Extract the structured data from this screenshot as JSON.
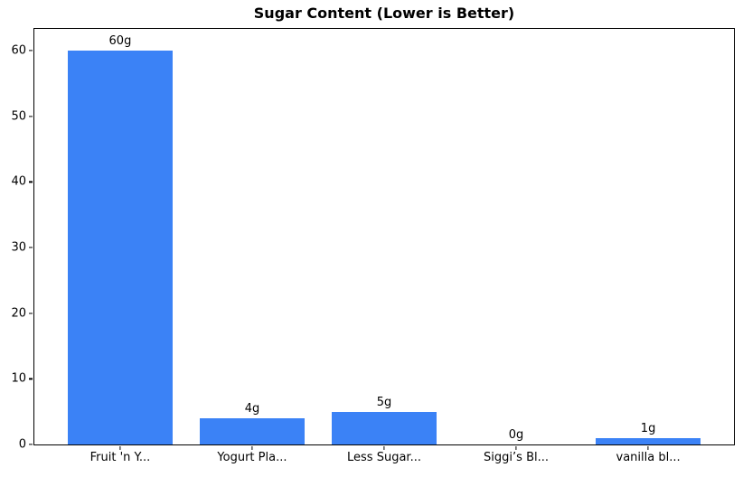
{
  "chart_data": {
    "type": "bar",
    "title": "Sugar Content (Lower is Better)",
    "categories": [
      "Fruit 'n Y...",
      "Yogurt Pla...",
      "Less Sugar...",
      "Siggi’s Bl...",
      "vanilla bl..."
    ],
    "values": [
      60,
      4,
      5,
      0,
      1
    ],
    "bar_labels": [
      "60g",
      "4g",
      "5g",
      "0g",
      "1g"
    ],
    "xlabel": "",
    "ylabel": "",
    "yticks": [
      0,
      10,
      20,
      30,
      40,
      50,
      60
    ],
    "ylim": [
      0,
      63.3
    ],
    "xlim": [
      -0.65,
      4.65
    ],
    "bar_width_units": 0.8,
    "bar_color": "#3b82f6",
    "axis_color": "#000000",
    "text_color": "#000000",
    "background_color": "#ffffff",
    "grid": false,
    "legend": null
  }
}
